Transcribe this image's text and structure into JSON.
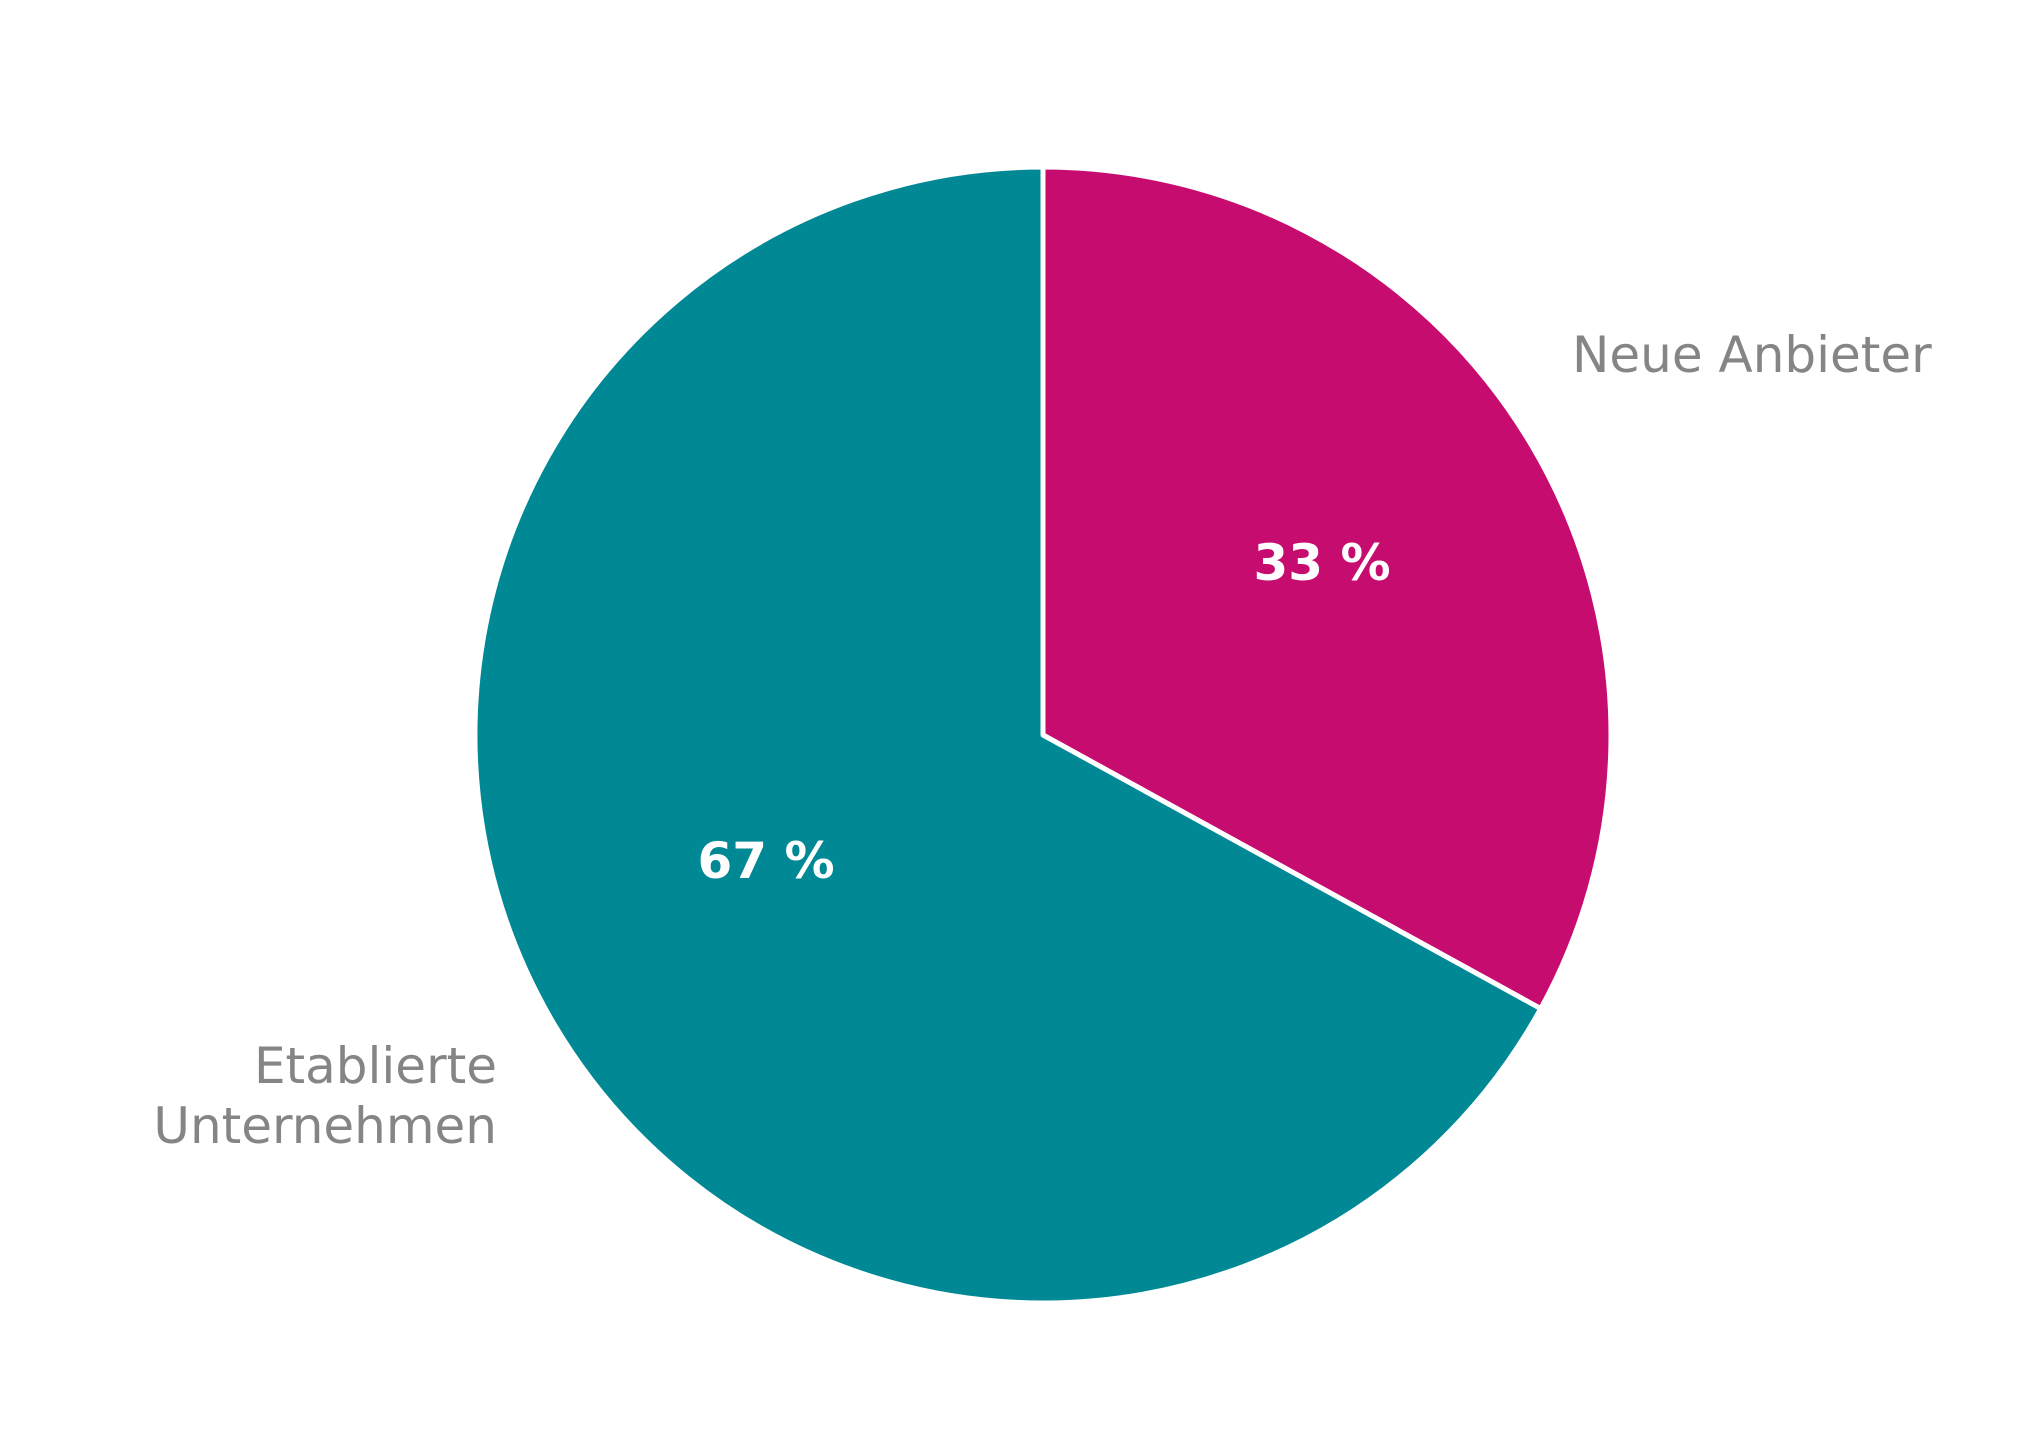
{
  "chart_data": {
    "type": "pie",
    "categories": [
      "Neue Anbieter",
      "Etablierte Unternehmen"
    ],
    "label_lines": [
      [
        "Neue Anbieter"
      ],
      [
        "Etablierte",
        "Unternehmen"
      ]
    ],
    "values": [
      33,
      67
    ],
    "value_labels": [
      "33 %",
      "67 %"
    ],
    "colors": [
      "#c70c6f",
      "#008895"
    ],
    "start_angle": "12 o'clock",
    "direction": "clockwise",
    "legend": "none, slices labelled directly"
  }
}
